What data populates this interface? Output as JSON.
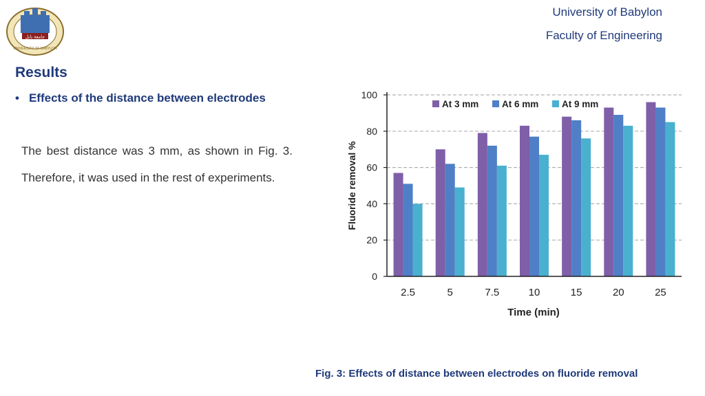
{
  "header": {
    "university": "University of Babylon",
    "faculty": "Faculty of Engineering",
    "logo_text": "جامعة بابل",
    "logo_ring_text": "UNIVERSITY OF BABYLON"
  },
  "section": {
    "title": "Results",
    "bullet_marker": "•",
    "bullet_text": "Effects of the distance between electrodes",
    "paragraph": "The best distance was 3 mm, as shown in Fig. 3. Therefore, it was used in the rest of experiments."
  },
  "caption": "Fig. 3: Effects of distance between electrodes on fluoride removal",
  "colors": {
    "text_blue": "#1f3a7a",
    "series": [
      "#7f5fa8",
      "#4f7fc6",
      "#4ab0cf"
    ]
  },
  "chart_data": {
    "type": "bar",
    "xlabel": "Time (min)",
    "ylabel": "Fluoride removal %",
    "categories": [
      "2.5",
      "5",
      "7.5",
      "10",
      "15",
      "20",
      "25"
    ],
    "ylim": [
      0,
      100
    ],
    "yticks": [
      0,
      20,
      40,
      60,
      80,
      100
    ],
    "grid": true,
    "legend_position": "top",
    "series": [
      {
        "name": "At 3 mm",
        "values": [
          57,
          70,
          79,
          83,
          88,
          93,
          96
        ]
      },
      {
        "name": "At 6 mm",
        "values": [
          51,
          62,
          72,
          77,
          86,
          89,
          93
        ]
      },
      {
        "name": "At 9 mm",
        "values": [
          40,
          49,
          61,
          67,
          76,
          83,
          85
        ]
      }
    ]
  }
}
